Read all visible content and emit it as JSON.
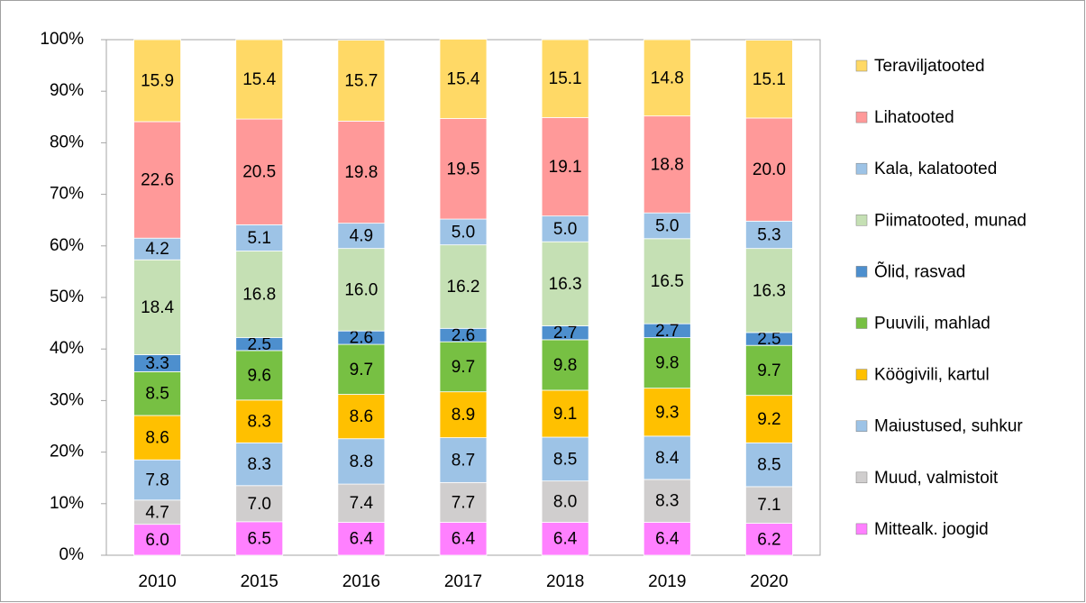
{
  "chart_data": {
    "type": "stacked_bar",
    "categories": [
      "2010",
      "2015",
      "2016",
      "2017",
      "2018",
      "2019",
      "2020"
    ],
    "ylim": [
      0,
      100
    ],
    "yticks": [
      {
        "value": 0,
        "label": "0%"
      },
      {
        "value": 10,
        "label": "10%"
      },
      {
        "value": 20,
        "label": "20%"
      },
      {
        "value": 30,
        "label": "30%"
      },
      {
        "value": 40,
        "label": "40%"
      },
      {
        "value": 50,
        "label": "50%"
      },
      {
        "value": 60,
        "label": "60%"
      },
      {
        "value": 70,
        "label": "70%"
      },
      {
        "value": 80,
        "label": "80%"
      },
      {
        "value": 90,
        "label": "90%"
      },
      {
        "value": 100,
        "label": "100%"
      }
    ],
    "grid": false,
    "legend": "right",
    "series": [
      {
        "name": "Mittealk. joogid",
        "color": "#ff80ff",
        "values": [
          6.0,
          6.5,
          6.4,
          6.4,
          6.4,
          6.4,
          6.2
        ],
        "value_labels": [
          "6.0",
          "6.5",
          "6.4",
          "6.4",
          "6.4",
          "6.4",
          "6.2"
        ]
      },
      {
        "name": "Muud, valmistoit",
        "color": "#d0cece",
        "values": [
          4.7,
          7.0,
          7.4,
          7.7,
          8.0,
          8.3,
          7.1
        ],
        "value_labels": [
          "4.7",
          "7.0",
          "7.4",
          "7.7",
          "8.0",
          "8.3",
          "7.1"
        ]
      },
      {
        "name": "Maiustused, suhkur",
        "color": "#9dc3e6",
        "values": [
          7.8,
          8.3,
          8.8,
          8.7,
          8.5,
          8.4,
          8.5
        ],
        "value_labels": [
          "7.8",
          "8.3",
          "8.8",
          "8.7",
          "8.5",
          "8.4",
          "8.5"
        ]
      },
      {
        "name": "Köögivili, kartul",
        "color": "#ffc000",
        "values": [
          8.6,
          8.3,
          8.6,
          8.9,
          9.1,
          9.3,
          9.2
        ],
        "value_labels": [
          "8.6",
          "8.3",
          "8.6",
          "8.9",
          "9.1",
          "9.3",
          "9.2"
        ]
      },
      {
        "name": "Puuvili, mahlad",
        "color": "#77c043",
        "values": [
          8.5,
          9.6,
          9.7,
          9.7,
          9.8,
          9.8,
          9.7
        ],
        "value_labels": [
          "8.5",
          "9.6",
          "9.7",
          "9.7",
          "9.8",
          "9.8",
          "9.7"
        ]
      },
      {
        "name": "Õlid, rasvad",
        "color": "#4d8fce",
        "values": [
          3.3,
          2.5,
          2.6,
          2.6,
          2.7,
          2.7,
          2.5
        ],
        "value_labels": [
          "3.3",
          "2.5",
          "2.6",
          "2.6",
          "2.7",
          "2.7",
          "2.5"
        ]
      },
      {
        "name": "Piimatooted, munad",
        "color": "#c5e0b4",
        "values": [
          18.4,
          16.8,
          16.0,
          16.2,
          16.3,
          16.5,
          16.3
        ],
        "value_labels": [
          "18.4",
          "16.8",
          "16.0",
          "16.2",
          "16.3",
          "16.5",
          "16.3"
        ]
      },
      {
        "name": "Kala, kalatooted",
        "color": "#9dc3e6",
        "values": [
          4.2,
          5.1,
          4.9,
          5.0,
          5.0,
          5.0,
          5.3
        ],
        "value_labels": [
          "4.2",
          "5.1",
          "4.9",
          "5.0",
          "5.0",
          "5.0",
          "5.3"
        ]
      },
      {
        "name": "Lihatooted",
        "color": "#ff9999",
        "values": [
          22.6,
          20.5,
          19.8,
          19.5,
          19.1,
          18.8,
          20.0
        ],
        "value_labels": [
          "22.6",
          "20.5",
          "19.8",
          "19.5",
          "19.1",
          "18.8",
          "20.0"
        ]
      },
      {
        "name": "Teraviljatooted",
        "color": "#ffd966",
        "values": [
          15.9,
          15.4,
          15.7,
          15.4,
          15.1,
          14.8,
          15.1
        ],
        "value_labels": [
          "15.9",
          "15.4",
          "15.7",
          "15.4",
          "15.1",
          "14.8",
          "15.1"
        ]
      }
    ]
  }
}
